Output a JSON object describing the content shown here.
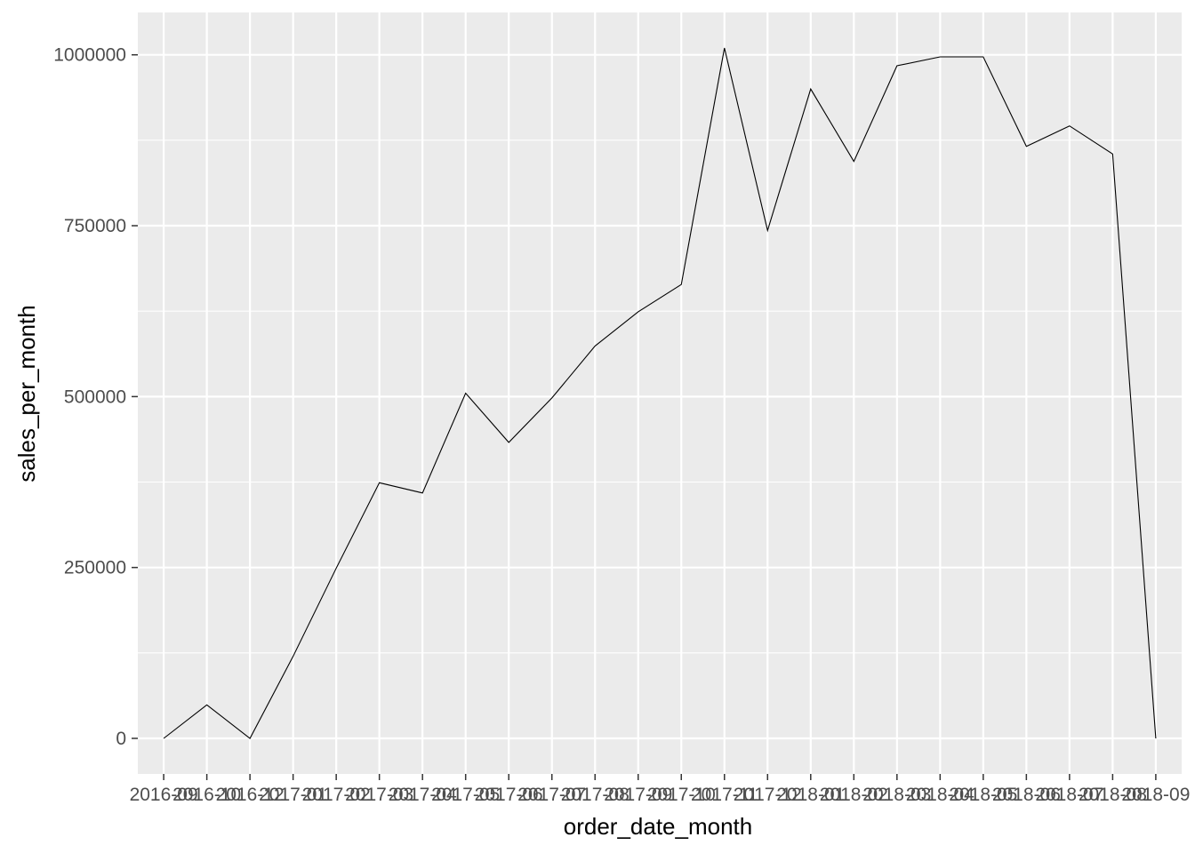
{
  "chart_data": {
    "type": "line",
    "title": "",
    "xlabel": "order_date_month",
    "ylabel": "sales_per_month",
    "x": [
      "2016-09",
      "2016-10",
      "2016-12",
      "2017-01",
      "2017-02",
      "2017-03",
      "2017-04",
      "2017-05",
      "2017-06",
      "2017-07",
      "2017-08",
      "2017-09",
      "2017-10",
      "2017-11",
      "2017-12",
      "2018-01",
      "2018-02",
      "2018-03",
      "2018-04",
      "2018-05",
      "2018-06",
      "2018-07",
      "2018-08",
      "2018-09"
    ],
    "series": [
      {
        "values": [
          0,
          49000,
          0,
          120000,
          249000,
          374000,
          359000,
          505000,
          433000,
          498000,
          574000,
          624000,
          664000,
          1010000,
          743000,
          950000,
          844000,
          984000,
          997000,
          997000,
          866000,
          896000,
          855000,
          0
        ]
      }
    ],
    "ylim": [
      -52000,
      1062000
    ],
    "yticks": [
      0,
      250000,
      500000,
      750000,
      1000000
    ],
    "ytick_labels": [
      "0",
      "250000",
      "500000",
      "750000",
      "1000000"
    ],
    "grid": true,
    "colors": {
      "panel": "#ebebeb",
      "grid": "#ffffff",
      "line": "#000000",
      "tick_text": "#4d4d4d"
    }
  }
}
